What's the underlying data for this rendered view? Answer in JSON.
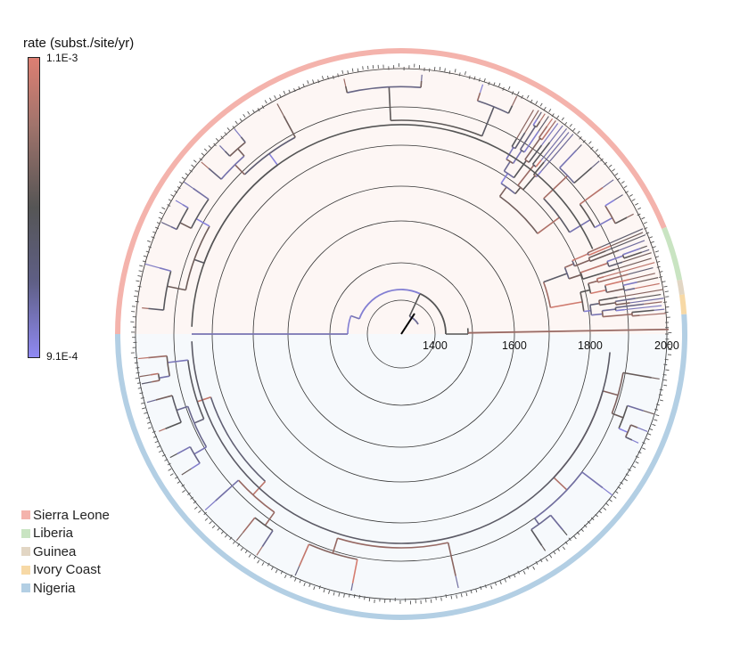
{
  "colorbar": {
    "title": "rate (subst./site/yr)",
    "max_label": "1.1E-3",
    "min_label": "9.1E-4",
    "high_color": "#dd7f72",
    "mid_color": "#555555",
    "low_color": "#8f89f2"
  },
  "time_axis": {
    "ticks": [
      "1400",
      "1600",
      "1800",
      "2000"
    ]
  },
  "legend": [
    {
      "label": "Sierra Leone",
      "color": "#f4b3ac"
    },
    {
      "label": "Liberia",
      "color": "#c9e4c2"
    },
    {
      "label": "Guinea",
      "color": "#e2d6c4"
    },
    {
      "label": "Ivory Coast",
      "color": "#f7d9a6"
    },
    {
      "label": "Nigeria",
      "color": "#b3cfe4"
    }
  ]
}
